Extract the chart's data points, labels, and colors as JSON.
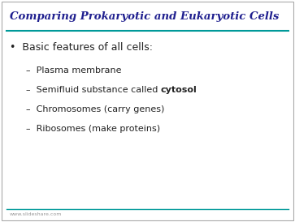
{
  "title": "Comparing Prokaryotic and Eukaryotic Cells",
  "title_color": "#1F1F8F",
  "title_fontsize": 9.5,
  "background_color": "#FFFFFF",
  "border_color": "#AAAAAA",
  "line_color": "#009999",
  "bullet_text": "Basic features of all cells:",
  "bullet_fontsize": 9.0,
  "bullet_color": "#222222",
  "sub_items_plain": [
    "Plasma membrane",
    "Chromosomes (carry genes)",
    "Ribosomes (make proteins)"
  ],
  "sub_item_mixed_prefix": "Semifluid substance called ",
  "sub_item_mixed_bold": "cytosol",
  "sub_fontsize": 8.0,
  "sub_color": "#222222",
  "footer_text": "www.slideshare.com",
  "footer_color": "#999999",
  "footer_fontsize": 4.5,
  "fig_width": 3.63,
  "fig_height": 2.74,
  "dpi": 100
}
